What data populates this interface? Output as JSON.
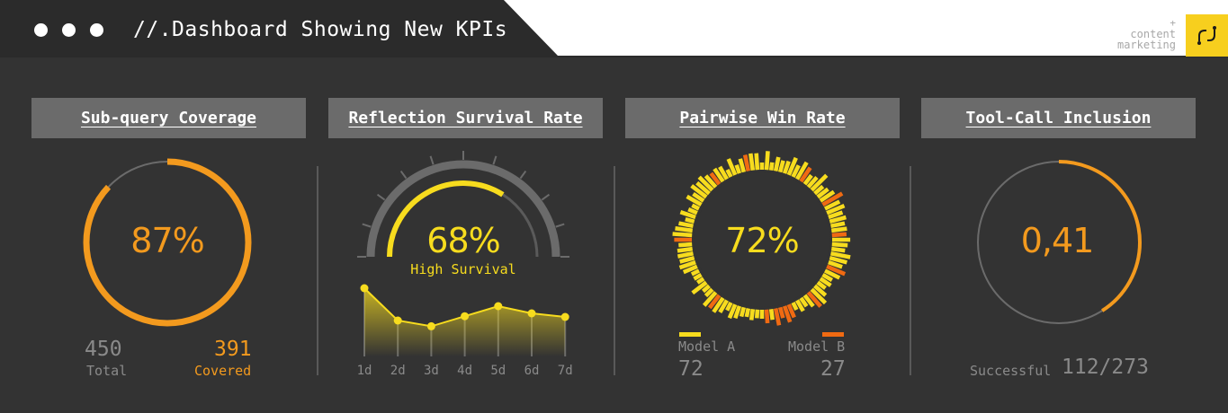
{
  "header": {
    "title": "//.Dashboard Showing New KPIs",
    "brand_plus": "+",
    "brand_line1": "content",
    "brand_line2": "marketing",
    "logo_icon": "link-icon"
  },
  "colors": {
    "orange": "#f39a1e",
    "yellow": "#f7dc1e",
    "deep_orange": "#f06a12",
    "gray": "#6b6b6b",
    "background": "#333333"
  },
  "panels": [
    {
      "title": "Sub-query Coverage",
      "value_label": "87%",
      "progress": 0.87,
      "total_value": "450",
      "total_label": "Total",
      "covered_value": "391",
      "covered_label": "Covered"
    },
    {
      "title": "Reflection Survival Rate",
      "value_label": "68%",
      "progress": 0.68,
      "sub_label": "High Survival"
    },
    {
      "title": "Pairwise Win Rate",
      "value_label": "72%",
      "model_a_label": "Model A",
      "model_a_value": "72",
      "model_b_label": "Model B",
      "model_b_value": "27"
    },
    {
      "title": "Tool-Call Inclusion",
      "value_label": "0,41",
      "progress": 0.41,
      "successful_label": "Successful",
      "successful_value": "112/273"
    }
  ],
  "chart_data": {
    "type": "line",
    "x": [
      "1d",
      "2d",
      "3d",
      "4d",
      "5d",
      "6d",
      "7d"
    ],
    "values": [
      0.95,
      0.5,
      0.42,
      0.56,
      0.7,
      0.6,
      0.55
    ],
    "ylim": [
      0,
      1
    ],
    "grid": "vertical"
  }
}
